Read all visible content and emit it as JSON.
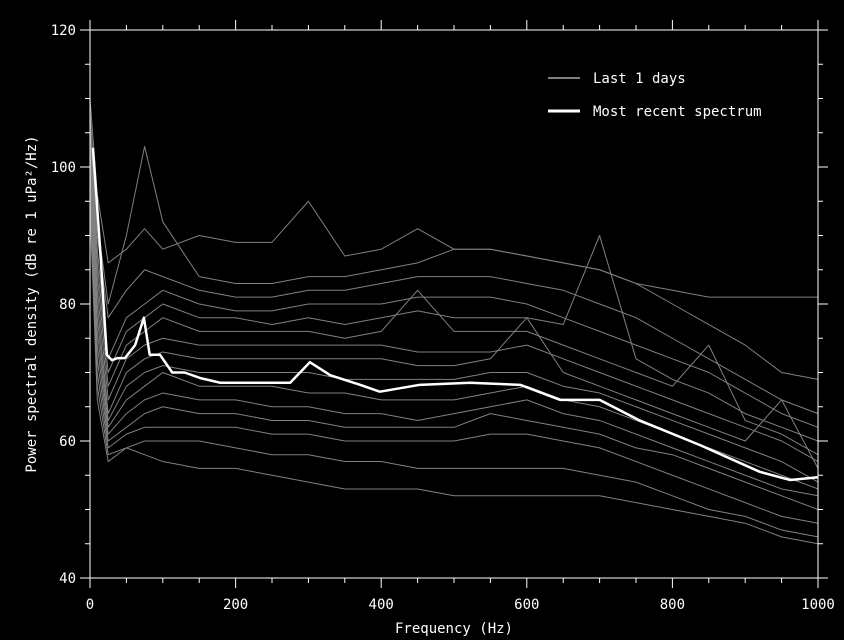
{
  "chart_data": {
    "type": "line",
    "title": "",
    "xlabel": "Frequency (Hz)",
    "ylabel": "Power spectral density (dB re 1 uPa²/Hz)",
    "xlim": [
      0,
      1000
    ],
    "ylim": [
      40,
      120
    ],
    "xticks": [
      0,
      200,
      400,
      600,
      800,
      1000
    ],
    "yticks": [
      40,
      60,
      80,
      100,
      120
    ],
    "grid": false,
    "legend_position": "top-right",
    "legend": [
      {
        "name": "Last 1 days",
        "color": "#808080"
      },
      {
        "name": "Most recent spectrum",
        "color": "#ffffff"
      }
    ],
    "history_x": [
      0,
      10,
      25,
      50,
      75,
      100,
      150,
      200,
      250,
      300,
      350,
      400,
      450,
      500,
      550,
      600,
      650,
      700,
      750,
      800,
      850,
      900,
      950,
      1000
    ],
    "history_series": [
      [
        110,
        96,
        86,
        88,
        91,
        88,
        90,
        89,
        89,
        95,
        87,
        88,
        91,
        88,
        88,
        87,
        86,
        85,
        83,
        82,
        81,
        81,
        81,
        81
      ],
      [
        108,
        92,
        80,
        90,
        103,
        92,
        84,
        83,
        83,
        84,
        84,
        85,
        86,
        88,
        88,
        87,
        86,
        85,
        83,
        80,
        77,
        74,
        70,
        69
      ],
      [
        106,
        90,
        78,
        82,
        85,
        84,
        82,
        81,
        81,
        82,
        82,
        83,
        84,
        84,
        84,
        83,
        82,
        80,
        78,
        75,
        72,
        69,
        66,
        64
      ],
      [
        105,
        88,
        72,
        78,
        80,
        82,
        80,
        79,
        79,
        80,
        80,
        80,
        81,
        81,
        81,
        80,
        78,
        76,
        74,
        72,
        70,
        67,
        64,
        62
      ],
      [
        104,
        86,
        70,
        76,
        78,
        80,
        78,
        78,
        77,
        78,
        77,
        78,
        79,
        78,
        78,
        78,
        77,
        90,
        72,
        69,
        67,
        64,
        62,
        60
      ],
      [
        103,
        84,
        68,
        74,
        76,
        78,
        76,
        76,
        76,
        76,
        75,
        76,
        82,
        76,
        76,
        76,
        74,
        72,
        70,
        68,
        74,
        63,
        61,
        58
      ],
      [
        102,
        82,
        66,
        72,
        74,
        75,
        74,
        74,
        74,
        74,
        74,
        74,
        73,
        73,
        73,
        74,
        72,
        70,
        68,
        66,
        64,
        62,
        60,
        57
      ],
      [
        101,
        80,
        64,
        70,
        72,
        73,
        72,
        72,
        72,
        72,
        72,
        72,
        71,
        71,
        72,
        78,
        70,
        68,
        66,
        64,
        62,
        60,
        66,
        56
      ],
      [
        100,
        78,
        63,
        68,
        70,
        71,
        70,
        70,
        70,
        70,
        69,
        69,
        69,
        69,
        70,
        70,
        68,
        67,
        65,
        63,
        61,
        59,
        57,
        54
      ],
      [
        99,
        76,
        62,
        66,
        68,
        70,
        68,
        68,
        68,
        67,
        67,
        66,
        66,
        66,
        67,
        68,
        66,
        65,
        63,
        61,
        59,
        57,
        55,
        53
      ],
      [
        98,
        74,
        61,
        64,
        66,
        67,
        66,
        66,
        65,
        65,
        64,
        64,
        63,
        64,
        65,
        66,
        64,
        63,
        61,
        59,
        57,
        55,
        53,
        52
      ],
      [
        97,
        72,
        60,
        62,
        64,
        65,
        64,
        64,
        63,
        63,
        62,
        62,
        62,
        62,
        64,
        63,
        62,
        61,
        59,
        58,
        56,
        54,
        52,
        50
      ],
      [
        96,
        70,
        59,
        61,
        62,
        62,
        62,
        62,
        61,
        61,
        60,
        60,
        60,
        60,
        61,
        61,
        60,
        59,
        57,
        55,
        53,
        51,
        49,
        48
      ],
      [
        95,
        68,
        58,
        59,
        60,
        60,
        60,
        59,
        58,
        58,
        57,
        57,
        56,
        56,
        56,
        56,
        56,
        55,
        54,
        52,
        50,
        49,
        47,
        46
      ],
      [
        94,
        66,
        57,
        59,
        58,
        57,
        56,
        56,
        55,
        54,
        53,
        53,
        53,
        52,
        52,
        52,
        52,
        52,
        51,
        50,
        49,
        48,
        46,
        45
      ]
    ],
    "recent": {
      "x": [
        4,
        14,
        23,
        30,
        38,
        48,
        62,
        74,
        82,
        96,
        113,
        130,
        151,
        179,
        220,
        275,
        302,
        330,
        371,
        398,
        453,
        522,
        591,
        646,
        700,
        755,
        838,
        920,
        962,
        1000
      ],
      "y": [
        102.8,
        87.9,
        72.6,
        71.8,
        72.1,
        72.1,
        74,
        78,
        72.6,
        72.6,
        70,
        70,
        69.2,
        68.5,
        68.5,
        68.5,
        71.5,
        69.6,
        68.2,
        67.2,
        68.2,
        68.5,
        68.2,
        66,
        66,
        63,
        59.4,
        55.5,
        54.3,
        54.7
      ]
    }
  }
}
